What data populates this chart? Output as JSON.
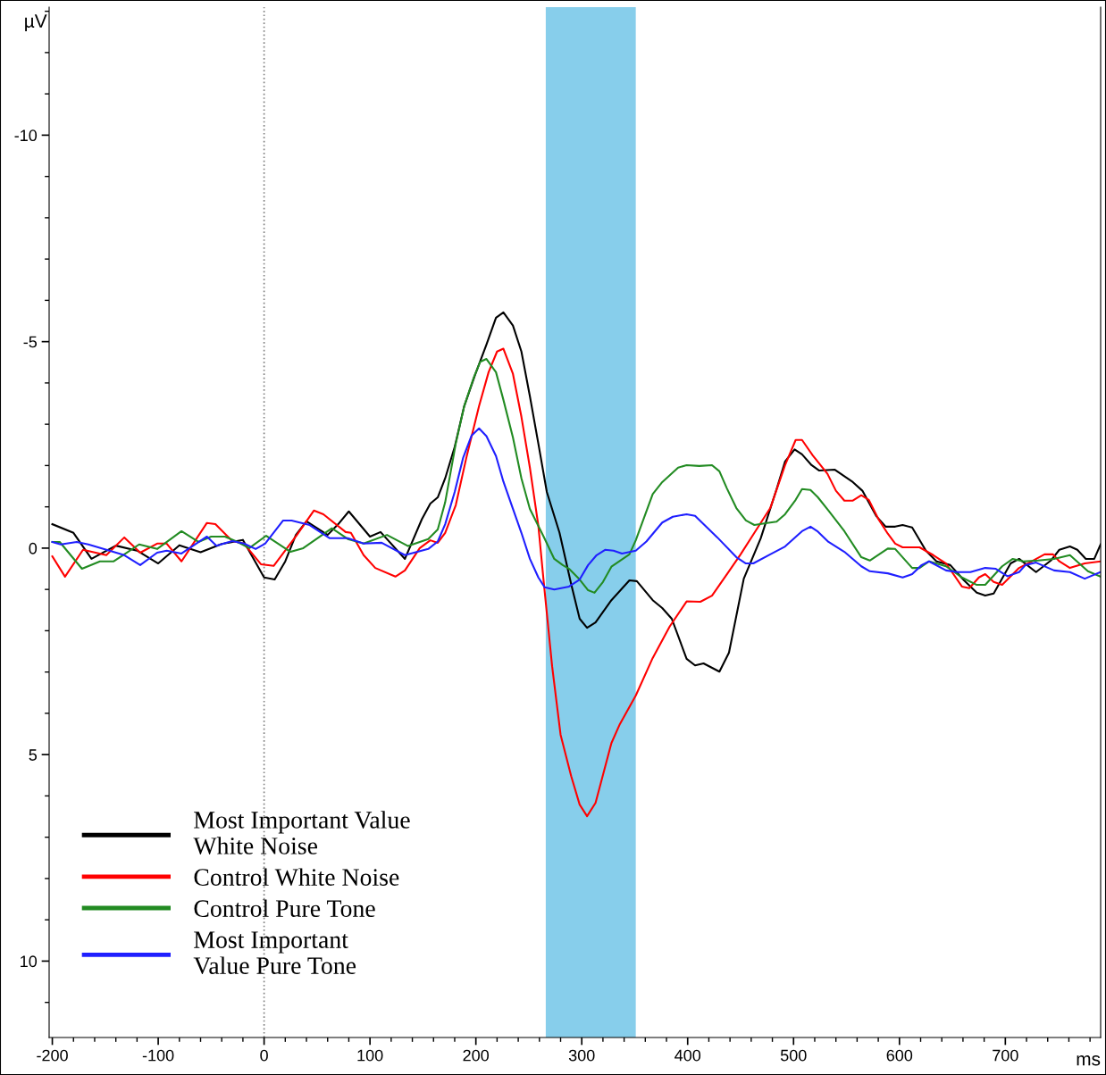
{
  "chart_data": {
    "type": "line",
    "xlabel": "ms",
    "ylabel": "µV",
    "xlim": [
      -203,
      790
    ],
    "xticks": [
      -200,
      -100,
      0,
      100,
      200,
      300,
      400,
      500,
      600,
      700
    ],
    "ylim": [
      11.85,
      -13.1
    ],
    "yticks": [
      -10,
      -5,
      0,
      5,
      10
    ],
    "legend": "bottom left",
    "grid": false,
    "bands": [
      {
        "axis": "x",
        "from": 266,
        "to": 351,
        "color": "#87ceeb"
      }
    ],
    "ref_lines": [
      {
        "axis": "x",
        "value": 0,
        "color": "#808080",
        "line_style": "dotted"
      }
    ],
    "series": [
      {
        "name": "Most Important Value\nWhite Noise",
        "color": "#000000",
        "x": [
          -200,
          -180,
          -163,
          -140,
          -120,
          -100,
          -80,
          -60,
          -40,
          -20,
          0,
          10,
          20,
          30,
          40,
          60,
          70,
          80,
          100,
          110,
          133,
          149,
          157,
          164,
          171,
          180,
          189,
          199,
          210,
          219,
          226,
          235,
          243,
          251,
          259,
          267,
          279,
          290,
          298,
          305,
          313,
          328,
          345,
          352,
          367,
          376,
          385,
          399,
          407,
          415,
          430,
          439,
          453,
          469,
          484,
          492,
          501,
          508,
          517,
          524,
          539,
          556,
          565,
          578,
          587,
          596,
          603,
          612,
          625,
          635,
          648,
          661,
          673,
          681,
          689,
          705,
          713,
          729,
          743,
          751,
          761,
          768,
          776,
          784,
          790
        ],
        "values": [
          -0.58,
          -0.37,
          0.26,
          -0.06,
          0.06,
          0.37,
          -0.07,
          0.1,
          -0.1,
          -0.2,
          0.71,
          0.76,
          0.32,
          -0.32,
          -0.65,
          -0.32,
          -0.58,
          -0.89,
          -0.28,
          -0.39,
          0.26,
          -0.7,
          -1.08,
          -1.23,
          -1.69,
          -2.45,
          -3.44,
          -4.18,
          -4.93,
          -5.58,
          -5.71,
          -5.39,
          -4.76,
          -3.68,
          -2.53,
          -1.36,
          -0.37,
          0.87,
          1.71,
          1.93,
          1.8,
          1.26,
          0.78,
          0.8,
          1.26,
          1.45,
          1.71,
          2.68,
          2.84,
          2.79,
          2.99,
          2.53,
          0.74,
          -0.24,
          -1.43,
          -2.1,
          -2.39,
          -2.27,
          -2.01,
          -1.88,
          -1.9,
          -1.6,
          -1.39,
          -0.78,
          -0.52,
          -0.52,
          -0.56,
          -0.5,
          0.06,
          0.32,
          0.41,
          0.78,
          1.08,
          1.15,
          1.1,
          0.37,
          0.26,
          0.58,
          0.3,
          0.04,
          -0.04,
          0.04,
          0.26,
          0.26,
          -0.09
        ]
      },
      {
        "name": "Control White Noise",
        "color": "#ff0000",
        "x": [
          -200,
          -188,
          -171,
          -149,
          -132,
          -117,
          -101,
          -92,
          -78,
          -54,
          -46,
          -30,
          -19,
          -3,
          9,
          31,
          47,
          56,
          77,
          82,
          94,
          105,
          124,
          133,
          147,
          157,
          164,
          171,
          181,
          191,
          203,
          212,
          220,
          226,
          235,
          243,
          251,
          259,
          264,
          272,
          280,
          290,
          298,
          305,
          313,
          328,
          336,
          351,
          367,
          383,
          399,
          412,
          423,
          439,
          450,
          463,
          478,
          492,
          502,
          508,
          518,
          532,
          540,
          548,
          556,
          564,
          571,
          580,
          589,
          596,
          603,
          619,
          632,
          644,
          659,
          666,
          675,
          681,
          689,
          697,
          713,
          725,
          737,
          745,
          751,
          761,
          775,
          790
        ],
        "values": [
          0.2,
          0.69,
          0.04,
          0.17,
          -0.26,
          0.11,
          -0.11,
          -0.11,
          0.32,
          -0.61,
          -0.58,
          -0.17,
          -0.11,
          0.39,
          0.43,
          -0.32,
          -0.91,
          -0.82,
          -0.39,
          -0.37,
          0.17,
          0.48,
          0.69,
          0.54,
          0,
          -0.19,
          -0.13,
          -0.37,
          -1.04,
          -2.19,
          -3.44,
          -4.26,
          -4.76,
          -4.83,
          -4.22,
          -3.18,
          -1.95,
          -0.54,
          0.8,
          2.86,
          4.52,
          5.52,
          6.21,
          6.49,
          6.17,
          4.72,
          4.26,
          3.57,
          2.66,
          1.9,
          1.29,
          1.3,
          1.15,
          0.56,
          0.15,
          -0.37,
          -0.97,
          -2.01,
          -2.62,
          -2.62,
          -2.25,
          -1.8,
          -1.39,
          -1.15,
          -1.15,
          -1.28,
          -1.17,
          -0.71,
          -0.35,
          -0.11,
          -0.02,
          -0.02,
          0.17,
          0.37,
          0.93,
          0.97,
          0.71,
          0.63,
          0.82,
          0.89,
          0.48,
          0.32,
          0.15,
          0.15,
          0.32,
          0.48,
          0.37,
          0.32
        ]
      },
      {
        "name": "Control Pure Tone",
        "color": "#228b22",
        "x": [
          -200,
          -193,
          -172,
          -155,
          -142,
          -132,
          -118,
          -101,
          -78,
          -62,
          -50,
          -37,
          -25,
          -14,
          2,
          25,
          37,
          64,
          79,
          94,
          116,
          136,
          155,
          164,
          171,
          181,
          189,
          198,
          204,
          210,
          219,
          226,
          235,
          243,
          251,
          264,
          274,
          282,
          288,
          298,
          306,
          312,
          320,
          328,
          345,
          351,
          367,
          376,
          391,
          399,
          411,
          423,
          430,
          437,
          446,
          455,
          463,
          475,
          484,
          492,
          502,
          508,
          516,
          523,
          533,
          548,
          564,
          572,
          589,
          596,
          612,
          619,
          628,
          644,
          659,
          673,
          681,
          697,
          707,
          717,
          731,
          746,
          761,
          778,
          790
        ],
        "values": [
          -0.15,
          -0.15,
          0.5,
          0.32,
          0.32,
          0.15,
          -0.09,
          0.02,
          -0.41,
          -0.15,
          -0.28,
          -0.28,
          -0.15,
          0,
          -0.3,
          0.09,
          0,
          -0.48,
          -0.22,
          -0.11,
          -0.32,
          -0.05,
          -0.22,
          -0.45,
          -1.11,
          -2.53,
          -3.44,
          -4.13,
          -4.51,
          -4.58,
          -4.26,
          -3.59,
          -2.68,
          -1.69,
          -0.95,
          -0.28,
          0.26,
          0.41,
          0.5,
          0.76,
          1.02,
          1.08,
          0.82,
          0.45,
          0.15,
          -0.19,
          -1.31,
          -1.6,
          -1.95,
          -2.01,
          -1.99,
          -2.01,
          -1.86,
          -1.45,
          -0.97,
          -0.67,
          -0.56,
          -0.61,
          -0.64,
          -0.82,
          -1.17,
          -1.43,
          -1.41,
          -1.23,
          -0.91,
          -0.41,
          0.22,
          0.3,
          0.01,
          0.02,
          0.48,
          0.48,
          0.32,
          0.44,
          0.71,
          0.89,
          0.89,
          0.44,
          0.26,
          0.32,
          0.3,
          0.26,
          0.17,
          0.56,
          0.69
        ]
      },
      {
        "name": "Most Important\nValue Pure Tone",
        "color": "#1f1fff",
        "x": [
          -200,
          -192,
          -177,
          -166,
          -146,
          -132,
          -117,
          -101,
          -92,
          -78,
          -54,
          -45,
          -30,
          -19,
          -8,
          1,
          18,
          26,
          43,
          62,
          79,
          94,
          111,
          133,
          155,
          164,
          171,
          180,
          188,
          196,
          203,
          210,
          219,
          226,
          235,
          243,
          251,
          259,
          265,
          274,
          288,
          298,
          306,
          314,
          322,
          330,
          338,
          351,
          361,
          376,
          386,
          399,
          407,
          428,
          446,
          455,
          462,
          478,
          492,
          508,
          516,
          523,
          533,
          548,
          564,
          572,
          589,
          603,
          612,
          621,
          628,
          644,
          655,
          667,
          681,
          691,
          702,
          713,
          719,
          729,
          746,
          761,
          775,
          790
        ],
        "values": [
          -0.15,
          -0.09,
          -0.15,
          -0.09,
          0.06,
          0.17,
          0.41,
          0.11,
          0.06,
          0.13,
          -0.28,
          -0.06,
          -0.17,
          -0.11,
          0.02,
          -0.11,
          -0.67,
          -0.67,
          -0.56,
          -0.24,
          -0.24,
          -0.11,
          -0.13,
          0.17,
          0.02,
          -0.16,
          -0.58,
          -1.36,
          -2.19,
          -2.73,
          -2.9,
          -2.71,
          -2.23,
          -1.61,
          -0.95,
          -0.37,
          0.26,
          0.71,
          0.95,
          1,
          0.93,
          0.76,
          0.41,
          0.17,
          0.04,
          0.06,
          0.13,
          0.06,
          -0.16,
          -0.62,
          -0.76,
          -0.82,
          -0.78,
          -0.26,
          0.22,
          0.37,
          0.37,
          0.15,
          -0.04,
          -0.41,
          -0.52,
          -0.4,
          -0.15,
          0.09,
          0.44,
          0.56,
          0.61,
          0.71,
          0.63,
          0.41,
          0.32,
          0.54,
          0.58,
          0.58,
          0.48,
          0.5,
          0.68,
          0.58,
          0.41,
          0.35,
          0.54,
          0.58,
          0.74,
          0.58
        ]
      }
    ]
  }
}
